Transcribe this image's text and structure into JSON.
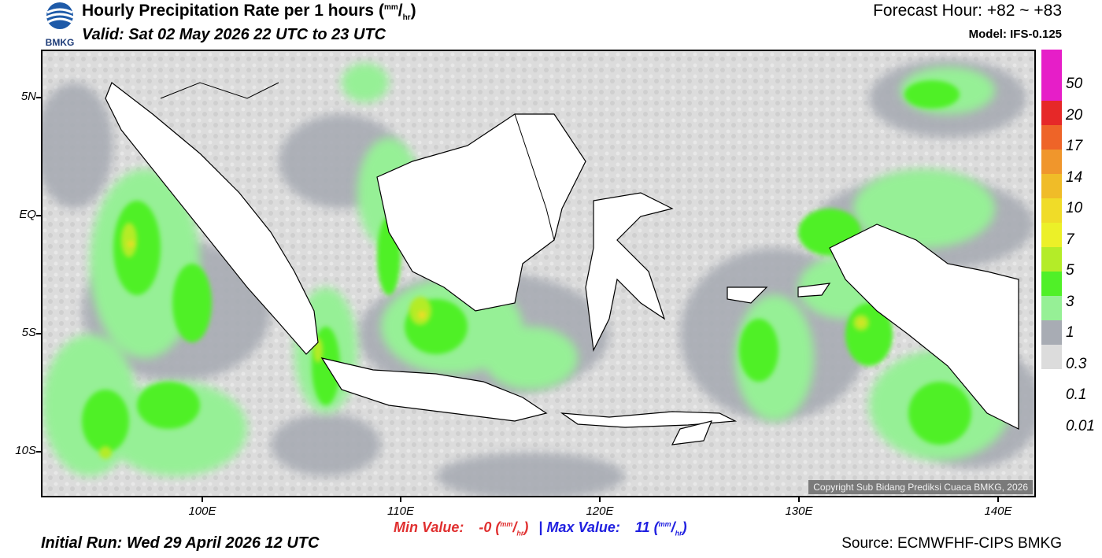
{
  "header": {
    "logo_text": "BMKG",
    "title": "Hourly Precipitation Rate per 1 hours",
    "title_unit_num": "mm",
    "title_unit_den": "hr",
    "valid": "Valid: Sat 02 May 2026 22 UTC to 23 UTC",
    "forecast_hour": "Forecast Hour: +82 ~ +83",
    "model": "Model: IFS-0.125"
  },
  "map": {
    "lat_labels": [
      "5N",
      "EQ",
      "5S",
      "10S"
    ],
    "lon_labels": [
      "100E",
      "110E",
      "120E",
      "130E",
      "140E"
    ],
    "copyright": "Copyright Sub Bidang Prediksi Cuaca BMKG, 2026"
  },
  "legend": {
    "labels": [
      "50",
      "20",
      "17",
      "14",
      "10",
      "7",
      "5",
      "3",
      "1",
      "0.3",
      "0.1",
      "0.01"
    ],
    "colors": [
      "#e61ec8",
      "#e62828",
      "#ee6428",
      "#f0962c",
      "#f0bc28",
      "#f0dc28",
      "#ecf028",
      "#b4ec28",
      "#50f028",
      "#96f096",
      "#a8acb4",
      "#dcdcdc"
    ]
  },
  "stats": {
    "min_label": "Min Value:",
    "min_value": "-0",
    "max_label": "Max Value:",
    "max_value": "11",
    "separator": "|",
    "unit_num": "mm",
    "unit_den": "hr"
  },
  "footer": {
    "initial_run": "Initial Run: Wed 29 April 2026 12 UTC",
    "source": "Source: ECMWFHF-CIPS BMKG"
  }
}
